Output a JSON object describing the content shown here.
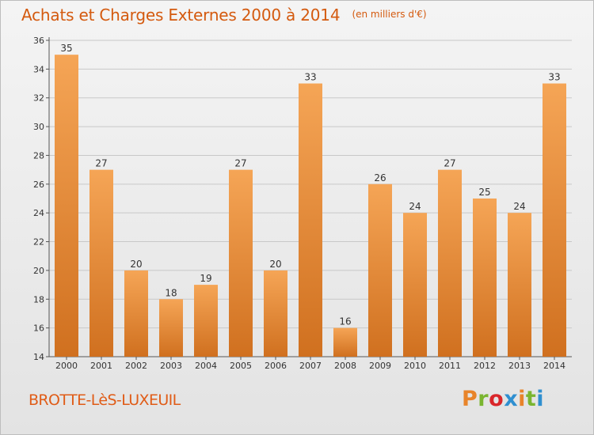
{
  "header": {
    "title": "Achats et Charges Externes 2000 à 2014",
    "units": "(en milliers d'€)"
  },
  "footer": {
    "place": "BROTTE-LèS-LUXEUIL",
    "logo": {
      "text": "Proxiti",
      "colors": [
        "#e8842a",
        "#7ab530",
        "#d9262a",
        "#2f8fd0",
        "#e8842a",
        "#7ab530",
        "#2f8fd0"
      ]
    }
  },
  "colors": {
    "bar_light": "#f5a556",
    "bar_dark": "#d0701f",
    "title": "#d45a0f",
    "grid": "#c8c8c8",
    "axis": "#555555"
  },
  "chart_data": {
    "type": "bar",
    "categories": [
      "2000",
      "2001",
      "2002",
      "2003",
      "2004",
      "2005",
      "2006",
      "2007",
      "2008",
      "2009",
      "2010",
      "2011",
      "2012",
      "2013",
      "2014"
    ],
    "values": [
      35,
      27,
      20,
      18,
      19,
      27,
      20,
      33,
      16,
      26,
      24,
      27,
      25,
      24,
      33
    ],
    "yticks": [
      "14",
      "16",
      "18",
      "20",
      "22",
      "24",
      "26",
      "28",
      "30",
      "32",
      "34",
      "36"
    ],
    "ylim": [
      14,
      36
    ],
    "grid": true
  }
}
